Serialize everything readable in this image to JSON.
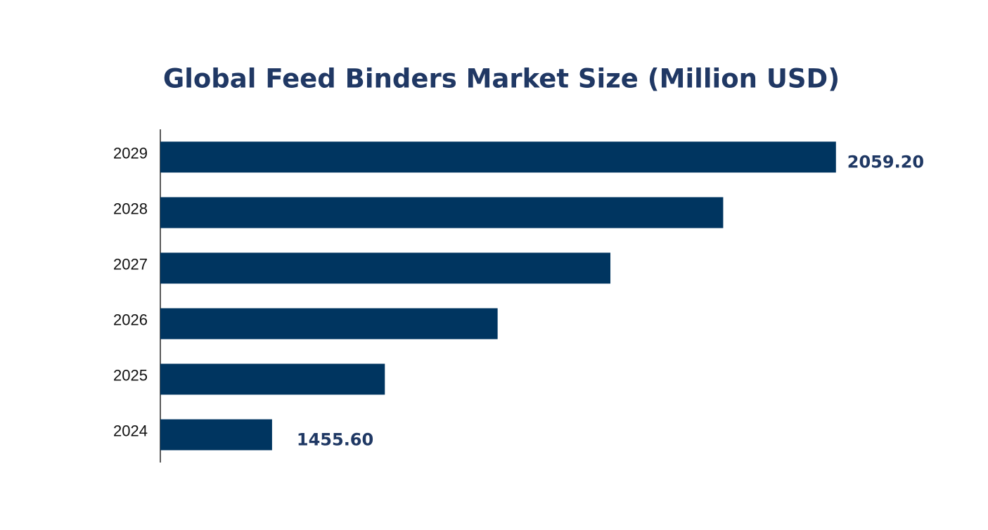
{
  "chart_data": {
    "type": "hbar",
    "title": "Global Feed Binders Market Size (Million USD)",
    "categories": [
      "2029",
      "2028",
      "2027",
      "2026",
      "2025",
      "2024"
    ],
    "values": [
      2059.2,
      1938.48,
      1817.76,
      1697.04,
      1576.32,
      1455.6
    ],
    "value_labels": [
      "2059.20",
      null,
      null,
      null,
      null,
      "1455.60"
    ],
    "color": "#003560",
    "xlim": [
      1336,
      2100
    ]
  }
}
